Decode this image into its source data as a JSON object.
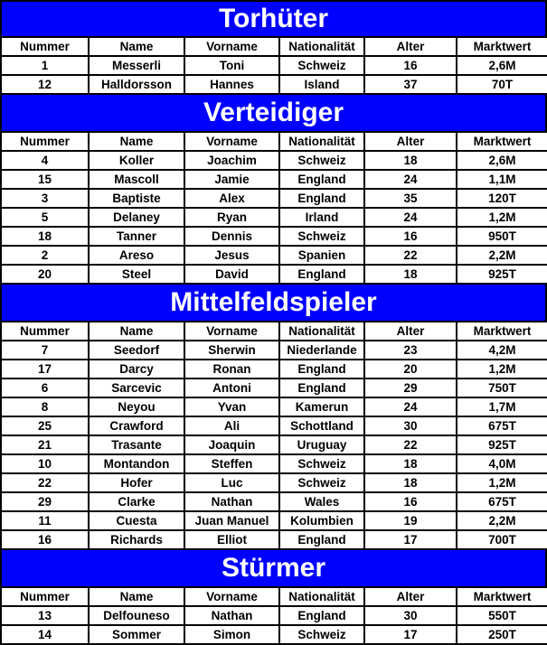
{
  "colors": {
    "banner_bg": "#0000FF",
    "banner_text": "#FFFFFF",
    "table_border": "#000000",
    "cell_bg": "#FFFFFF",
    "cell_text": "#000000"
  },
  "columns": [
    "Nummer",
    "Name",
    "Vorname",
    "Nationalität",
    "Alter",
    "Marktwert"
  ],
  "sections": [
    {
      "title": "Torhüter",
      "rows": [
        [
          "1",
          "Messerli",
          "Toni",
          "Schweiz",
          "16",
          "2,6M"
        ],
        [
          "12",
          "Halldorsson",
          "Hannes",
          "Island",
          "37",
          "70T"
        ]
      ]
    },
    {
      "title": "Verteidiger",
      "rows": [
        [
          "4",
          "Koller",
          "Joachim",
          "Schweiz",
          "18",
          "2,6M"
        ],
        [
          "15",
          "Mascoll",
          "Jamie",
          "England",
          "24",
          "1,1M"
        ],
        [
          "3",
          "Baptiste",
          "Alex",
          "England",
          "35",
          "120T"
        ],
        [
          "5",
          "Delaney",
          "Ryan",
          "Irland",
          "24",
          "1,2M"
        ],
        [
          "18",
          "Tanner",
          "Dennis",
          "Schweiz",
          "16",
          "950T"
        ],
        [
          "2",
          "Areso",
          "Jesus",
          "Spanien",
          "22",
          "2,2M"
        ],
        [
          "20",
          "Steel",
          "David",
          "England",
          "18",
          "925T"
        ]
      ]
    },
    {
      "title": "Mittelfeldspieler",
      "rows": [
        [
          "7",
          "Seedorf",
          "Sherwin",
          "Niederlande",
          "23",
          "4,2M"
        ],
        [
          "17",
          "Darcy",
          "Ronan",
          "England",
          "20",
          "1,2M"
        ],
        [
          "6",
          "Sarcevic",
          "Antoni",
          "England",
          "29",
          "750T"
        ],
        [
          "8",
          "Neyou",
          "Yvan",
          "Kamerun",
          "24",
          "1,7M"
        ],
        [
          "25",
          "Crawford",
          "Ali",
          "Schottland",
          "30",
          "675T"
        ],
        [
          "21",
          "Trasante",
          "Joaquin",
          "Uruguay",
          "22",
          "925T"
        ],
        [
          "10",
          "Montandon",
          "Steffen",
          "Schweiz",
          "18",
          "4,0M"
        ],
        [
          "22",
          "Hofer",
          "Luc",
          "Schweiz",
          "18",
          "1,2M"
        ],
        [
          "29",
          "Clarke",
          "Nathan",
          "Wales",
          "16",
          "675T"
        ],
        [
          "11",
          "Cuesta",
          "Juan Manuel",
          "Kolumbien",
          "19",
          "2,2M"
        ],
        [
          "16",
          "Richards",
          "Elliot",
          "England",
          "17",
          "700T"
        ]
      ]
    },
    {
      "title": "Stürmer",
      "rows": [
        [
          "13",
          "Delfouneso",
          "Nathan",
          "England",
          "30",
          "550T"
        ],
        [
          "14",
          "Sommer",
          "Simon",
          "Schweiz",
          "17",
          "250T"
        ]
      ]
    }
  ]
}
